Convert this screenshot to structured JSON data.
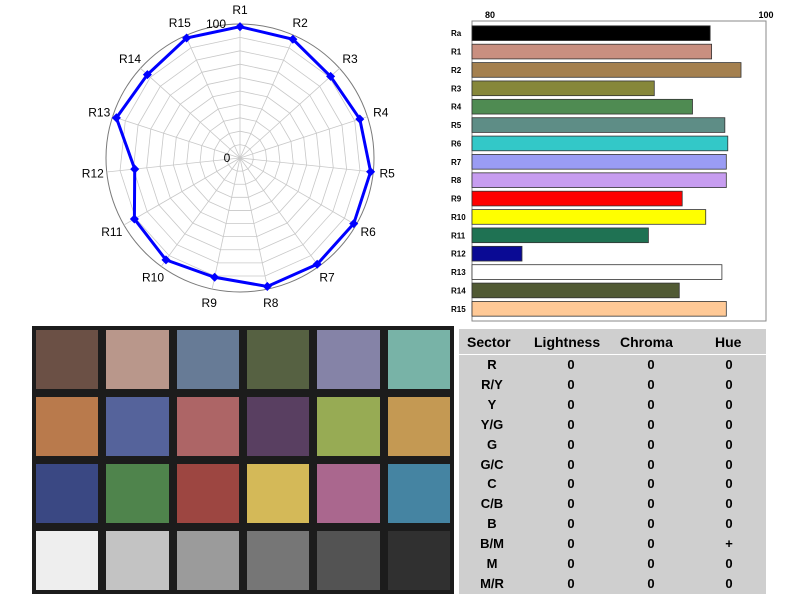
{
  "chart_data": [
    {
      "type": "radar",
      "axes": [
        "R1",
        "R2",
        "R3",
        "R4",
        "R5",
        "R6",
        "R7",
        "R8",
        "R9",
        "R10",
        "R11",
        "R12",
        "R13",
        "R14",
        "R15"
      ],
      "values": [
        98,
        97,
        91,
        94,
        98,
        98,
        98,
        98,
        91,
        94,
        91,
        79,
        97,
        93,
        98
      ],
      "range": [
        0,
        100
      ],
      "center_label": "0",
      "outer_label": "100",
      "series_color": "#0000ff"
    },
    {
      "type": "bar",
      "orientation": "horizontal",
      "categories": [
        "Ra",
        "R1",
        "R2",
        "R3",
        "R4",
        "R5",
        "R6",
        "R7",
        "R8",
        "R9",
        "R10",
        "R11",
        "R12",
        "R13",
        "R14",
        "R15"
      ],
      "values": [
        96.2,
        96.3,
        98.3,
        92.4,
        95.0,
        97.2,
        97.4,
        97.3,
        97.3,
        94.3,
        95.9,
        92.0,
        83.4,
        97.0,
        94.1,
        97.3
      ],
      "colors": [
        "#000000",
        "#c98f80",
        "#a4804f",
        "#86873a",
        "#4f8b52",
        "#5e8d86",
        "#33c8c8",
        "#9a9cf4",
        "#c79df0",
        "#ff0000",
        "#ffff00",
        "#1f7253",
        "#0a0a94",
        "#ffffff",
        "#515a34",
        "#ffc996"
      ],
      "xlim": [
        80,
        100
      ],
      "xticks": [
        "80",
        "100"
      ]
    }
  ],
  "checker_colors": [
    [
      "#6b5045",
      "#b9978b",
      "#677b96",
      "#566142",
      "#8583a7",
      "#78b3a7"
    ],
    [
      "#b97a4c",
      "#55639b",
      "#ad6566",
      "#593f61",
      "#97ab54",
      "#c49953"
    ],
    [
      "#3a4883",
      "#4f844c",
      "#9d4641",
      "#d4b958",
      "#aa678e",
      "#4584a2"
    ],
    [
      "#eeeeee",
      "#c3c3c3",
      "#9b9b9b",
      "#767676",
      "#535353",
      "#303030"
    ]
  ],
  "table": {
    "headers": [
      "Sector",
      "Lightness",
      "Chroma",
      "Hue"
    ],
    "rows": [
      [
        "R",
        "0",
        "0",
        "0"
      ],
      [
        "R/Y",
        "0",
        "0",
        "0"
      ],
      [
        "Y",
        "0",
        "0",
        "0"
      ],
      [
        "Y/G",
        "0",
        "0",
        "0"
      ],
      [
        "G",
        "0",
        "0",
        "0"
      ],
      [
        "G/C",
        "0",
        "0",
        "0"
      ],
      [
        "C",
        "0",
        "0",
        "0"
      ],
      [
        "C/B",
        "0",
        "0",
        "0"
      ],
      [
        "B",
        "0",
        "0",
        "0"
      ],
      [
        "B/M",
        "0",
        "0",
        "+"
      ],
      [
        "M",
        "0",
        "0",
        "0"
      ],
      [
        "M/R",
        "0",
        "0",
        "0"
      ]
    ]
  }
}
